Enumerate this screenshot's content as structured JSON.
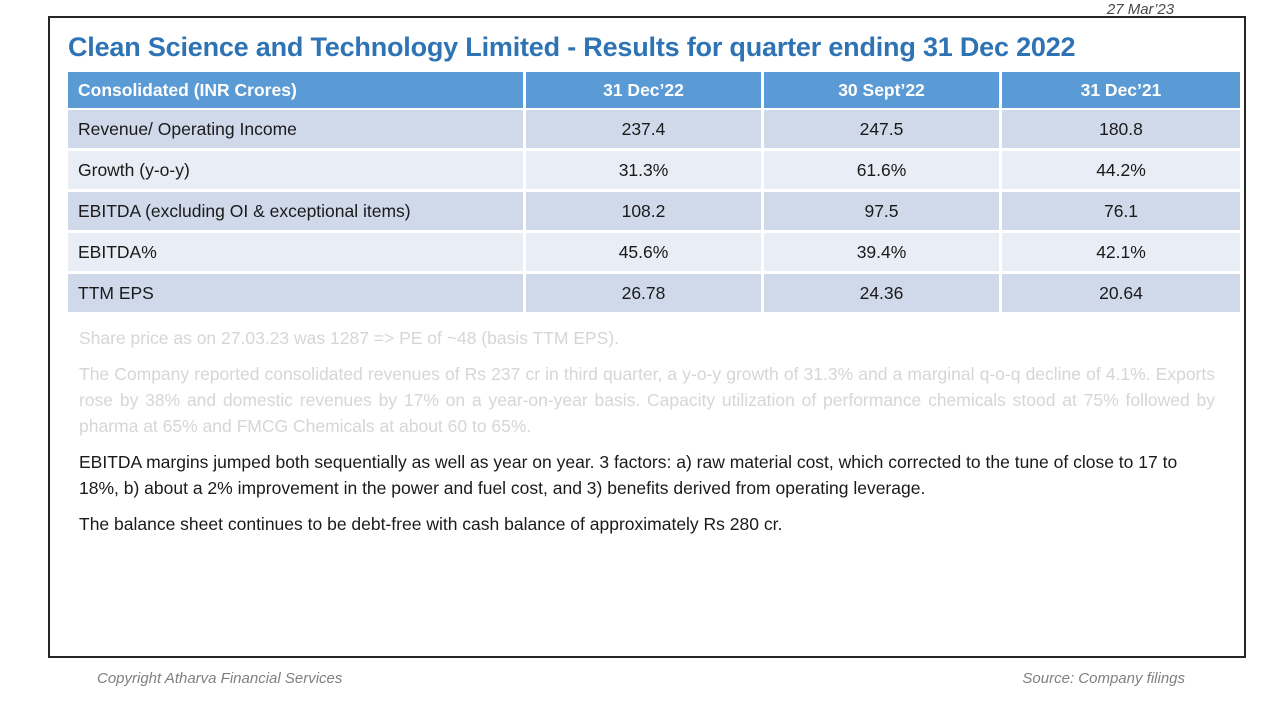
{
  "page": {
    "date": "27 Mar’23",
    "footer_left": "Copyright Atharva Financial Services",
    "footer_right": "Source: Company filings"
  },
  "slide": {
    "title": "Clean Science and Technology Limited - Results for quarter ending 31 Dec 2022"
  },
  "table": {
    "headers": [
      "Consolidated (INR Crores)",
      "31 Dec’22",
      "30 Sept’22",
      "31 Dec’21"
    ],
    "rows": [
      {
        "label": "Revenue/ Operating Income",
        "values": [
          "237.4",
          "247.5",
          "180.8"
        ]
      },
      {
        "label": "Growth (y-o-y)",
        "values": [
          "31.3%",
          "61.6%",
          "44.2%"
        ]
      },
      {
        "label": "EBITDA (excluding OI & exceptional items)",
        "values": [
          "108.2",
          "97.5",
          "76.1"
        ]
      },
      {
        "label": "EBITDA%",
        "values": [
          "45.6%",
          "39.4%",
          "42.1%"
        ]
      },
      {
        "label": "TTM EPS",
        "values": [
          "26.78",
          "24.36",
          "20.64"
        ]
      }
    ]
  },
  "notes": {
    "faded_line": "Share price as on 27.03.23 was 1287 => PE of ~48 (basis TTM EPS).",
    "faded_paragraph": "The Company reported consolidated revenues of Rs 237 cr in third quarter, a y-o-y growth of 31.3% and a marginal q-o-q decline of 4.1%. Exports rose by 38% and domestic revenues by 17% on a year-on-year basis. Capacity utilization of performance chemicals stood at 75% followed by pharma at 65% and FMCG Chemicals at about 60 to 65%.",
    "paragraph_ebitda": "EBITDA margins jumped both sequentially as well as year on year. 3 factors: a) raw material cost, which corrected to the tune of close to 17 to 18%, b) about a 2% improvement in the power and fuel cost, and 3) benefits derived from operating leverage.",
    "paragraph_balance": "The balance sheet continues to be debt-free with cash balance of approximately Rs 280 cr."
  },
  "chart_data": {
    "type": "table",
    "title": "Clean Science and Technology Limited - Results for quarter ending 31 Dec 2022",
    "columns": [
      "31 Dec’22",
      "30 Sept’22",
      "31 Dec’21"
    ],
    "series": [
      {
        "name": "Revenue/ Operating Income",
        "values": [
          237.4,
          247.5,
          180.8
        ]
      },
      {
        "name": "Growth (y-o-y) %",
        "values": [
          31.3,
          61.6,
          44.2
        ]
      },
      {
        "name": "EBITDA (excluding OI & exceptional items)",
        "values": [
          108.2,
          97.5,
          76.1
        ]
      },
      {
        "name": "EBITDA %",
        "values": [
          45.6,
          39.4,
          42.1
        ]
      },
      {
        "name": "TTM EPS",
        "values": [
          26.78,
          24.36,
          20.64
        ]
      }
    ]
  },
  "colors": {
    "title-blue": "#2E74B5",
    "header-blue": "#5B9BD5",
    "row-dark": "#CFD9EA",
    "row-light": "#E9EDF5",
    "faded-gray": "#D6D6D6",
    "footer-gray": "#808080",
    "date-gray": "#4a4a4a"
  }
}
